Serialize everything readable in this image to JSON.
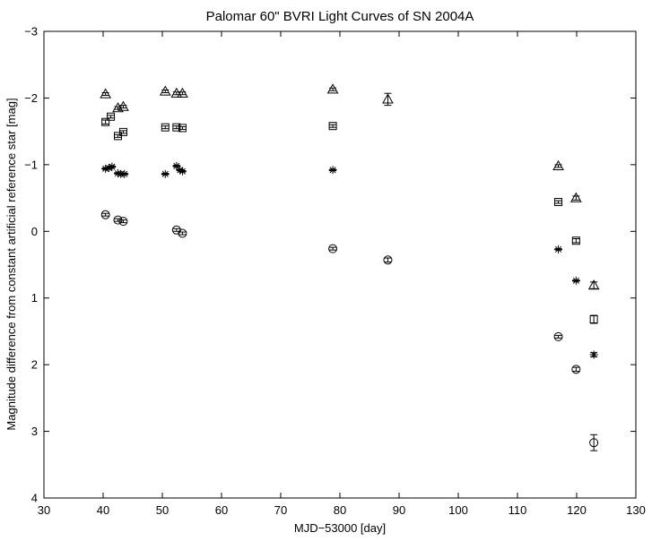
{
  "chart_data": {
    "type": "scatter",
    "title": "Palomar 60\" BVRI Light Curves of SN 2004A",
    "xlabel": "MJD−53000 [day]",
    "ylabel": "Magnitude difference from constant artificial reference star [mag]",
    "xlim": [
      30,
      130
    ],
    "ylim": [
      4,
      -3
    ],
    "y_inverted": true,
    "grid": false,
    "x_ticks": [
      30,
      40,
      50,
      60,
      70,
      80,
      90,
      100,
      110,
      120,
      130
    ],
    "y_ticks": [
      -3,
      -2,
      -1,
      0,
      1,
      2,
      3,
      4
    ],
    "x_tick_labels": [
      "30",
      "40",
      "50",
      "60",
      "70",
      "80",
      "90",
      "100",
      "110",
      "120",
      "130"
    ],
    "y_tick_labels": [
      "−3",
      "−2",
      "−1",
      "0",
      "1",
      "2",
      "3",
      "4"
    ],
    "series": [
      {
        "marker": "circle",
        "x": [
          40.4,
          42.5,
          43.4,
          52.4,
          53.4,
          78.8,
          88.1,
          116.9,
          119.9,
          122.9
        ],
        "y": [
          -0.25,
          -0.17,
          -0.15,
          -0.02,
          0.03,
          0.26,
          0.43,
          1.58,
          2.07,
          3.17
        ],
        "err": [
          0.02,
          0.02,
          0.02,
          0.02,
          0.02,
          0.02,
          0.03,
          0.02,
          0.03,
          0.12
        ]
      },
      {
        "marker": "asterisk",
        "x": [
          40.4,
          41.0,
          41.5,
          42.5,
          43.0,
          43.6,
          50.5,
          52.4,
          53.0,
          53.4,
          78.8,
          116.9,
          119.9,
          122.9
        ],
        "y": [
          -0.94,
          -0.95,
          -0.97,
          -0.87,
          -0.86,
          -0.86,
          -0.86,
          -0.98,
          -0.92,
          -0.9,
          -0.92,
          0.27,
          0.74,
          1.85
        ],
        "err": [
          0.01,
          0.01,
          0.01,
          0.01,
          0.01,
          0.01,
          0.01,
          0.01,
          0.01,
          0.01,
          0.01,
          0.01,
          0.01,
          0.03
        ]
      },
      {
        "marker": "square",
        "x": [
          40.4,
          41.3,
          42.5,
          43.4,
          50.5,
          52.4,
          53.4,
          78.8,
          116.9,
          119.9,
          122.9
        ],
        "y": [
          -1.64,
          -1.72,
          -1.43,
          -1.49,
          -1.56,
          -1.56,
          -1.55,
          -1.58,
          -0.44,
          0.14,
          1.32
        ],
        "err": [
          0.03,
          0.02,
          0.02,
          0.02,
          0.02,
          0.02,
          0.02,
          0.02,
          0.02,
          0.03,
          0.06
        ]
      },
      {
        "marker": "triangle",
        "x": [
          40.4,
          42.5,
          43.4,
          50.5,
          52.4,
          53.4,
          78.8,
          88.1,
          116.9,
          119.9,
          122.9
        ],
        "y": [
          -2.06,
          -1.85,
          -1.87,
          -2.1,
          -2.07,
          -2.07,
          -2.13,
          -1.98,
          -0.98,
          -0.5,
          0.81
        ],
        "err": [
          0.02,
          0.02,
          0.02,
          0.02,
          0.02,
          0.02,
          0.02,
          0.09,
          0.02,
          0.03,
          0.05
        ]
      }
    ]
  }
}
